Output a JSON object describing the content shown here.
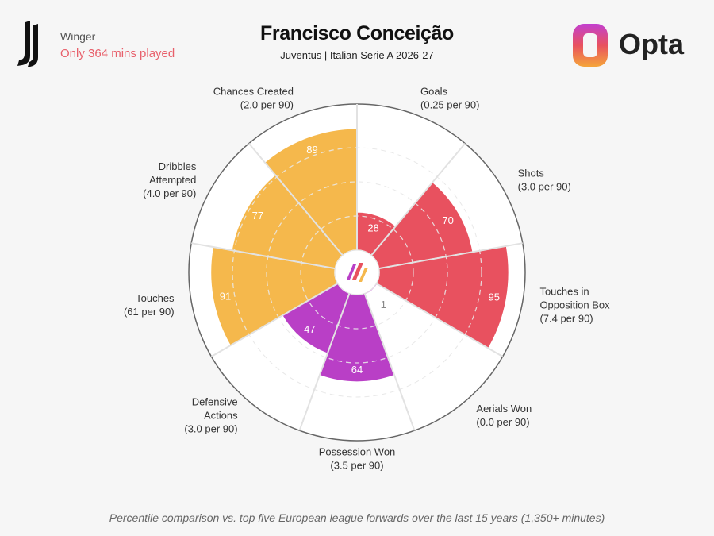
{
  "header": {
    "position": "Winger",
    "minutes_note": "Only 364 mins played",
    "player_name": "Francisco Conceição",
    "subtitle": "Juventus | Italian Serie A 2026-27",
    "brand": "Opta"
  },
  "footer": {
    "note": "Percentile comparison vs. top five European league forwards over the last 15 years (1,350+ minutes)"
  },
  "colors": {
    "attacking": "#e8515f",
    "possession": "#f5b84c",
    "defending": "#b93fc6",
    "mins_note": "#e8606b",
    "background": "#f6f6f6"
  },
  "chart_data": {
    "type": "polar-bar",
    "title": "Francisco Conceição",
    "subtitle": "Juventus | Italian Serie A 2026-27",
    "rlim": [
      0,
      100
    ],
    "categories": [
      {
        "name": "Goals",
        "per90": "(0.25 per 90)",
        "value": 28,
        "group": "attacking"
      },
      {
        "name": "Shots",
        "per90": "(3.0 per 90)",
        "value": 70,
        "group": "attacking"
      },
      {
        "name": "Touches in\nOpposition Box",
        "per90": "(7.4 per 90)",
        "value": 95,
        "group": "attacking"
      },
      {
        "name": "Aerials Won",
        "per90": "(0.0 per 90)",
        "value": 1,
        "group": "defending"
      },
      {
        "name": "Possession Won",
        "per90": "(3.5 per 90)",
        "value": 64,
        "group": "defending"
      },
      {
        "name": "Defensive\nActions",
        "per90": "(3.0 per 90)",
        "value": 47,
        "group": "defending"
      },
      {
        "name": "Touches",
        "per90": "(61 per 90)",
        "value": 91,
        "group": "possession"
      },
      {
        "name": "Dribbles\nAttempted",
        "per90": "(4.0 per 90)",
        "value": 77,
        "group": "possession"
      },
      {
        "name": "Chances Created",
        "per90": "(2.0 per 90)",
        "value": 89,
        "group": "possession"
      }
    ]
  }
}
